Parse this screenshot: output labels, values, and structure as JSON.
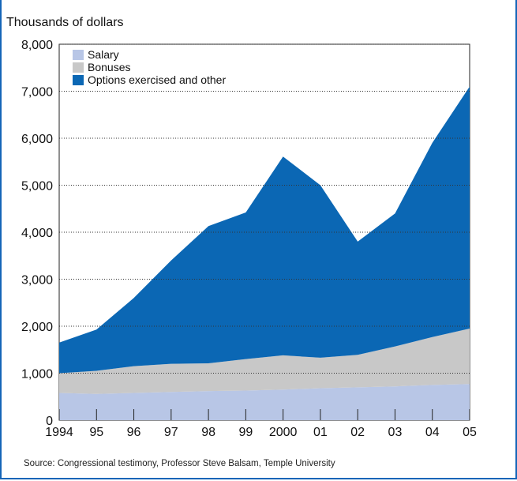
{
  "chart_data": {
    "type": "area",
    "stacked": true,
    "ylabel": "Thousands of dollars",
    "source": "Source: Congressional testimony, Professor Steve Balsam, Temple University",
    "x": [
      "1994",
      "95",
      "96",
      "97",
      "98",
      "99",
      "2000",
      "01",
      "02",
      "03",
      "04",
      "05"
    ],
    "yticks": [
      "0",
      "1,000",
      "2,000",
      "3,000",
      "4,000",
      "5,000",
      "6,000",
      "7,000",
      "8,000"
    ],
    "ylim": [
      0,
      8000
    ],
    "grid": "horizontal dotted",
    "legend_position": "top-left",
    "series": [
      {
        "name": "Salary",
        "color": "#b8c6e6",
        "values": [
          580,
          560,
          580,
          600,
          620,
          630,
          650,
          680,
          700,
          720,
          750,
          770
        ]
      },
      {
        "name": "Bonuses",
        "color": "#c8c8c8",
        "values": [
          420,
          490,
          570,
          600,
          590,
          670,
          730,
          650,
          690,
          850,
          1020,
          1180
        ]
      },
      {
        "name": "Options exercised and other",
        "color": "#0b67b4",
        "values": [
          650,
          880,
          1450,
          2200,
          2920,
          3120,
          4230,
          3670,
          2410,
          2830,
          4130,
          5150
        ]
      }
    ]
  }
}
